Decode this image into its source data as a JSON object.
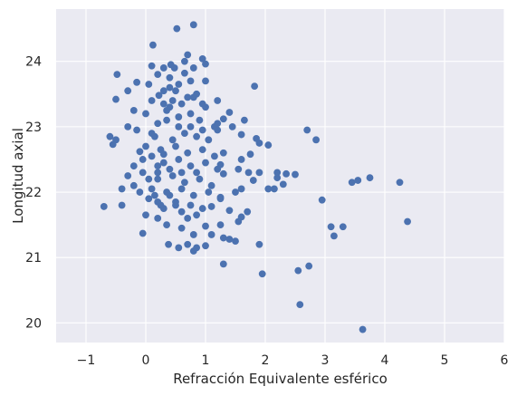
{
  "chart_data": {
    "type": "scatter",
    "title": "",
    "xlabel": "Refracción Equivalente esférico",
    "ylabel": "Longitud axial",
    "xlim": [
      -1.5,
      6.0
    ],
    "ylim": [
      19.7,
      24.8
    ],
    "xticks": [
      -1,
      0,
      1,
      2,
      3,
      4,
      5,
      6
    ],
    "yticks": [
      20,
      21,
      22,
      23,
      24
    ],
    "xtick_labels": [
      "−1",
      "0",
      "1",
      "2",
      "3",
      "4",
      "5",
      "6"
    ],
    "ytick_labels": [
      "20",
      "21",
      "22",
      "23",
      "24"
    ],
    "grid": true,
    "legend": "none",
    "colors": {
      "points": "#4c72b0",
      "background": "#eaeaf2",
      "grid": "#ffffff",
      "text": "#262626"
    },
    "series": [
      {
        "points": [
          [
            0.8,
            24.56
          ],
          [
            0.52,
            24.5
          ],
          [
            0.12,
            24.25
          ],
          [
            0.7,
            24.1
          ],
          [
            0.95,
            24.04
          ],
          [
            0.1,
            23.93
          ],
          [
            0.42,
            23.95
          ],
          [
            0.48,
            23.9
          ],
          [
            0.8,
            23.9
          ],
          [
            1.0,
            23.96
          ],
          [
            0.3,
            23.9
          ],
          [
            -0.48,
            23.8
          ],
          [
            0.2,
            23.8
          ],
          [
            0.4,
            23.75
          ],
          [
            0.65,
            23.82
          ],
          [
            1.0,
            23.7
          ],
          [
            -0.3,
            23.55
          ],
          [
            -0.15,
            23.68
          ],
          [
            0.05,
            23.65
          ],
          [
            0.22,
            23.48
          ],
          [
            1.82,
            23.62
          ],
          [
            -0.5,
            23.42
          ],
          [
            0.1,
            23.4
          ],
          [
            0.3,
            23.35
          ],
          [
            0.5,
            23.55
          ],
          [
            0.8,
            23.45
          ],
          [
            1.2,
            23.4
          ],
          [
            1.0,
            23.3
          ],
          [
            -0.2,
            23.25
          ],
          [
            0.0,
            23.2
          ],
          [
            0.4,
            23.3
          ],
          [
            1.4,
            23.22
          ],
          [
            1.3,
            23.12
          ],
          [
            1.65,
            23.1
          ],
          [
            1.2,
            23.05
          ],
          [
            1.45,
            23.0
          ],
          [
            2.7,
            22.95
          ],
          [
            -0.3,
            23.0
          ],
          [
            -0.15,
            22.95
          ],
          [
            0.1,
            22.9
          ],
          [
            1.2,
            22.95
          ],
          [
            1.6,
            22.88
          ],
          [
            1.85,
            22.82
          ],
          [
            -0.6,
            22.85
          ],
          [
            -0.5,
            22.8
          ],
          [
            -0.55,
            22.73
          ],
          [
            0.0,
            22.7
          ],
          [
            1.9,
            22.75
          ],
          [
            2.05,
            22.72
          ],
          [
            2.85,
            22.8
          ],
          [
            -0.1,
            22.62
          ],
          [
            0.3,
            22.58
          ],
          [
            1.3,
            22.6
          ],
          [
            1.75,
            22.58
          ],
          [
            -0.05,
            22.5
          ],
          [
            1.6,
            22.5
          ],
          [
            -0.2,
            22.4
          ],
          [
            1.25,
            22.42
          ],
          [
            1.55,
            22.35
          ],
          [
            -0.3,
            22.25
          ],
          [
            0.2,
            22.3
          ],
          [
            1.3,
            22.28
          ],
          [
            1.72,
            22.3
          ],
          [
            1.9,
            22.3
          ],
          [
            2.2,
            22.3
          ],
          [
            2.35,
            22.28
          ],
          [
            2.5,
            22.27
          ],
          [
            2.2,
            22.22
          ],
          [
            3.75,
            22.22
          ],
          [
            3.45,
            22.15
          ],
          [
            3.55,
            22.18
          ],
          [
            4.25,
            22.15
          ],
          [
            2.3,
            22.12
          ],
          [
            1.8,
            22.18
          ],
          [
            1.6,
            22.05
          ],
          [
            -0.4,
            22.05
          ],
          [
            -0.2,
            22.1
          ],
          [
            -0.1,
            22.0
          ],
          [
            1.5,
            22.0
          ],
          [
            2.05,
            22.05
          ],
          [
            2.15,
            22.05
          ],
          [
            0.05,
            21.9
          ],
          [
            0.2,
            21.85
          ],
          [
            0.4,
            21.95
          ],
          [
            1.25,
            21.92
          ],
          [
            2.95,
            21.88
          ],
          [
            -0.4,
            21.8
          ],
          [
            -0.7,
            21.78
          ],
          [
            0.3,
            21.75
          ],
          [
            0.5,
            21.8
          ],
          [
            1.1,
            21.78
          ],
          [
            1.4,
            21.72
          ],
          [
            1.7,
            21.7
          ],
          [
            0.0,
            21.65
          ],
          [
            0.2,
            21.6
          ],
          [
            0.7,
            21.6
          ],
          [
            1.6,
            21.62
          ],
          [
            1.55,
            21.55
          ],
          [
            4.38,
            21.55
          ],
          [
            0.35,
            21.5
          ],
          [
            0.6,
            21.45
          ],
          [
            1.0,
            21.48
          ],
          [
            1.25,
            21.5
          ],
          [
            3.1,
            21.47
          ],
          [
            3.3,
            21.47
          ],
          [
            -0.05,
            21.37
          ],
          [
            0.8,
            21.35
          ],
          [
            1.1,
            21.35
          ],
          [
            1.3,
            21.3
          ],
          [
            3.15,
            21.33
          ],
          [
            0.38,
            21.2
          ],
          [
            0.7,
            21.2
          ],
          [
            1.0,
            21.18
          ],
          [
            1.4,
            21.28
          ],
          [
            1.5,
            21.25
          ],
          [
            0.55,
            21.15
          ],
          [
            0.8,
            21.1
          ],
          [
            0.85,
            21.15
          ],
          [
            1.9,
            21.2
          ],
          [
            1.3,
            20.9
          ],
          [
            2.73,
            20.87
          ],
          [
            1.95,
            20.75
          ],
          [
            2.55,
            20.8
          ],
          [
            2.58,
            20.28
          ],
          [
            3.63,
            19.9
          ],
          [
            0.2,
            23.05
          ],
          [
            0.35,
            23.1
          ],
          [
            0.55,
            23.15
          ],
          [
            0.75,
            23.2
          ],
          [
            0.9,
            23.1
          ],
          [
            0.15,
            22.85
          ],
          [
            0.45,
            22.8
          ],
          [
            0.65,
            22.9
          ],
          [
            0.85,
            22.85
          ],
          [
            1.05,
            22.8
          ],
          [
            0.25,
            22.65
          ],
          [
            0.5,
            22.7
          ],
          [
            0.7,
            22.6
          ],
          [
            0.95,
            22.65
          ],
          [
            1.15,
            22.55
          ],
          [
            0.3,
            22.45
          ],
          [
            0.55,
            22.5
          ],
          [
            0.75,
            22.4
          ],
          [
            1.0,
            22.45
          ],
          [
            1.2,
            22.35
          ],
          [
            0.2,
            22.2
          ],
          [
            0.45,
            22.25
          ],
          [
            0.65,
            22.15
          ],
          [
            0.9,
            22.2
          ],
          [
            1.1,
            22.1
          ],
          [
            0.35,
            22.0
          ],
          [
            0.6,
            22.05
          ],
          [
            0.8,
            21.95
          ],
          [
            1.05,
            22.0
          ],
          [
            1.25,
            21.9
          ],
          [
            0.5,
            21.85
          ],
          [
            0.75,
            21.8
          ],
          [
            0.95,
            21.75
          ],
          [
            0.6,
            21.7
          ],
          [
            0.85,
            21.65
          ],
          [
            0.1,
            22.55
          ],
          [
            0.2,
            22.4
          ],
          [
            0.4,
            22.35
          ],
          [
            0.6,
            22.3
          ],
          [
            0.85,
            22.3
          ],
          [
            0.45,
            23.4
          ],
          [
            0.6,
            23.35
          ],
          [
            0.7,
            23.45
          ],
          [
            0.85,
            23.5
          ],
          [
            0.95,
            23.35
          ],
          [
            0.35,
            23.25
          ],
          [
            0.55,
            23.0
          ],
          [
            0.75,
            23.0
          ],
          [
            0.95,
            22.95
          ],
          [
            1.15,
            23.0
          ],
          [
            0.05,
            22.2
          ],
          [
            0.1,
            22.05
          ],
          [
            -0.05,
            22.3
          ],
          [
            0.15,
            21.95
          ],
          [
            0.25,
            21.8
          ],
          [
            0.65,
            24.0
          ],
          [
            0.55,
            23.65
          ],
          [
            0.75,
            23.7
          ],
          [
            0.4,
            23.6
          ],
          [
            0.3,
            23.55
          ]
        ]
      }
    ]
  }
}
